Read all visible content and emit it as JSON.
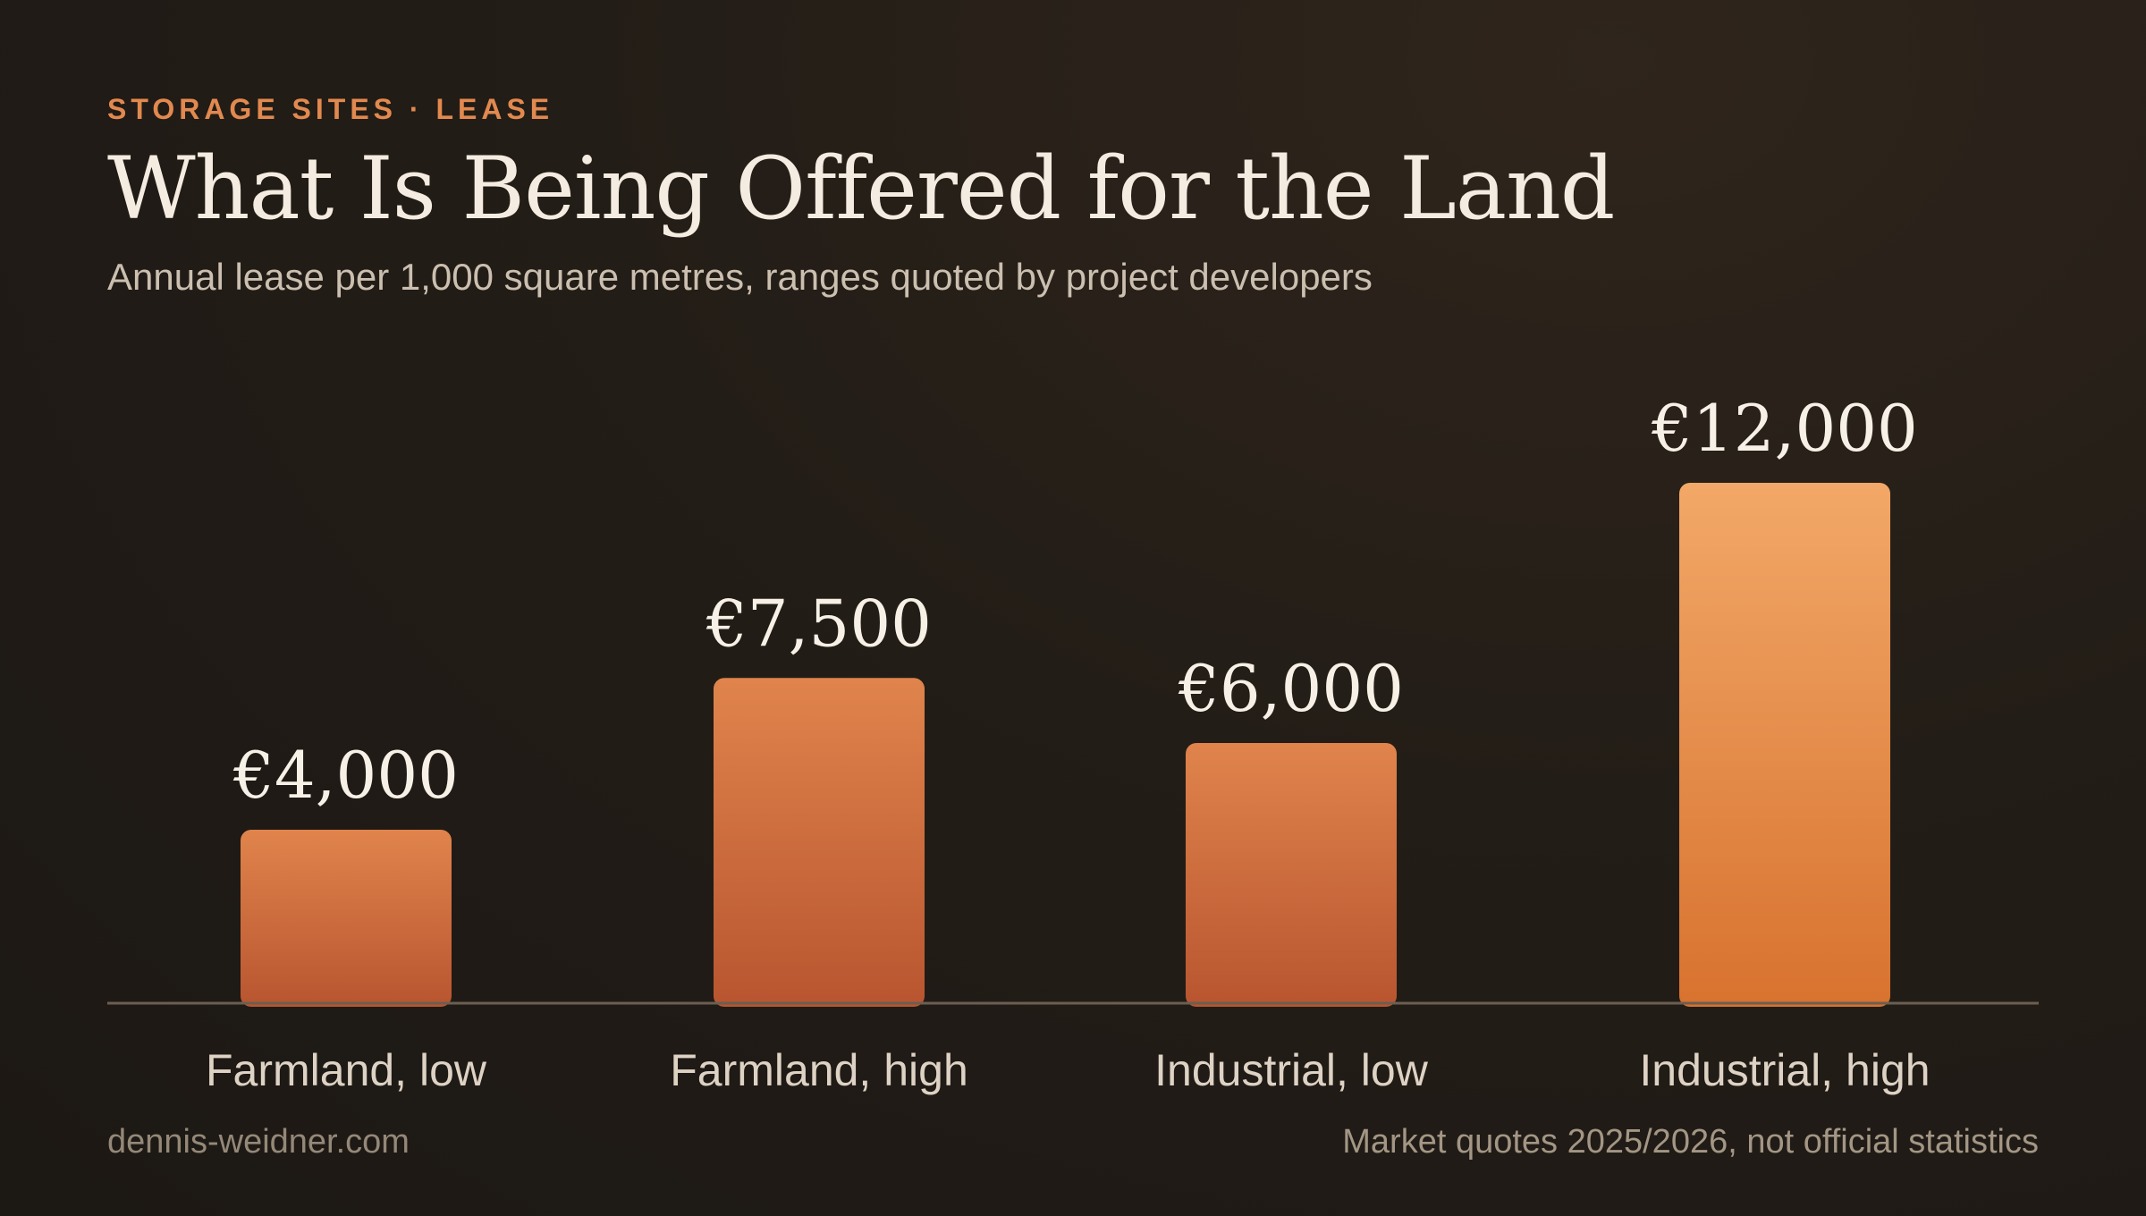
{
  "header": {
    "eyebrow": "STORAGE SITES · LEASE",
    "title": "What Is Being Offered for the Land",
    "subtitle": "Annual lease per 1,000 square metres, ranges quoted by project developers"
  },
  "footer": {
    "source": "dennis-weidner.com",
    "note": "Market quotes 2025/2026, not official statistics"
  },
  "colors": {
    "accent": "#e2894f",
    "bar_low_top": "#e0844c",
    "bar_low_bottom": "#b85530",
    "bar_high_top": "#f2a868",
    "bar_high_bottom": "#d8722f"
  },
  "chart_data": {
    "type": "bar",
    "title": "What Is Being Offered for the Land",
    "xlabel": "",
    "ylabel": "",
    "categories": [
      "Farmland, low",
      "Farmland, high",
      "Industrial, low",
      "Industrial, high"
    ],
    "values": [
      4000,
      7500,
      6000,
      12000
    ],
    "value_labels": [
      "€4,000",
      "€7,500",
      "€6,000",
      "€12,000"
    ],
    "highlight": [
      false,
      false,
      false,
      true
    ],
    "ylim": [
      0,
      12000
    ],
    "grid": false,
    "legend": "none"
  }
}
